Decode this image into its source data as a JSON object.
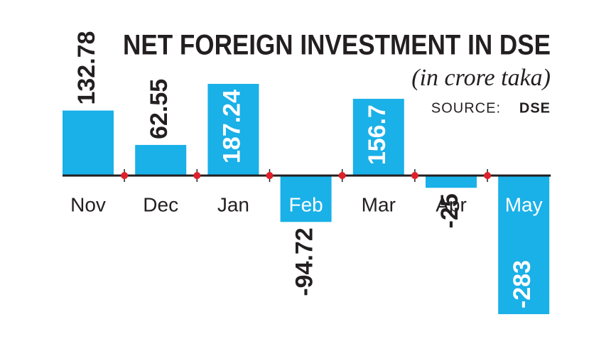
{
  "chart_data": {
    "type": "bar",
    "title": "NET FOREIGN INVESTMENT IN DSE",
    "subtitle": "(in crore taka)",
    "source_label": "SOURCE:",
    "source": "DSE",
    "categories": [
      "Nov",
      "Dec",
      "Jan",
      "Feb",
      "Mar",
      "Apr",
      "May"
    ],
    "values": [
      132.78,
      62.55,
      187.24,
      -94.72,
      156.7,
      -25,
      -283
    ],
    "color": "#1ab0e8"
  }
}
